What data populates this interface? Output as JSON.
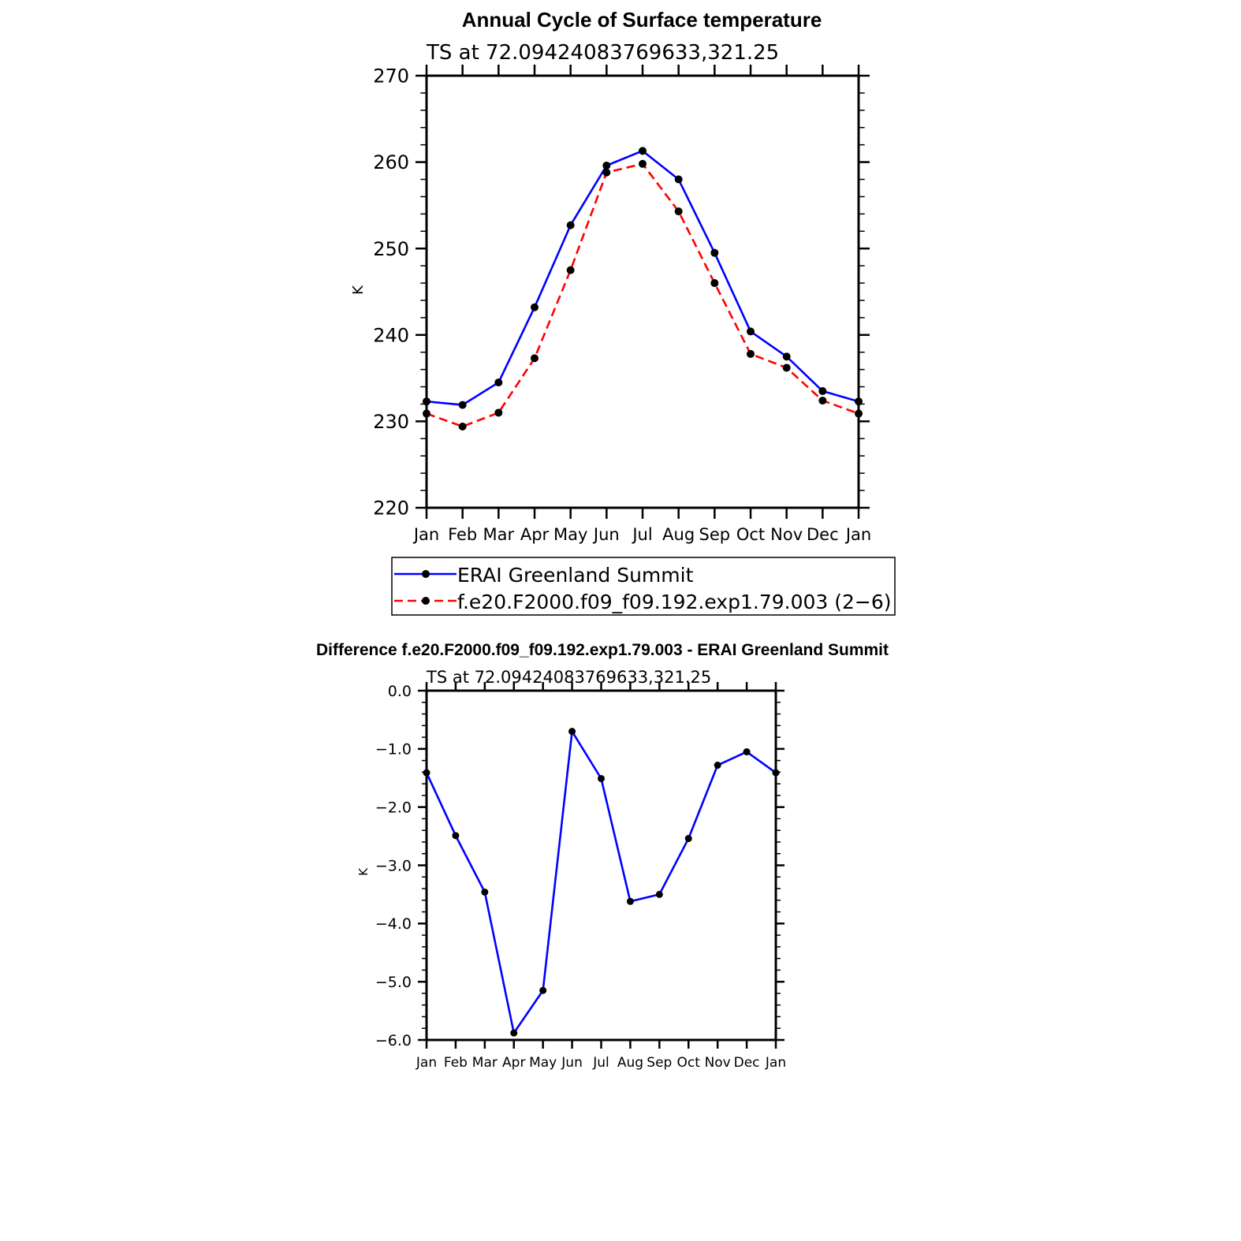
{
  "chart_data": [
    {
      "type": "line",
      "title": "Annual Cycle of Surface temperature",
      "subtitle": "TS at 72.09424083769633,321.25",
      "xlabel": "",
      "ylabel": "K",
      "categories": [
        "Jan",
        "Feb",
        "Mar",
        "Apr",
        "May",
        "Jun",
        "Jul",
        "Aug",
        "Sep",
        "Oct",
        "Nov",
        "Dec",
        "Jan"
      ],
      "ylim": [
        220,
        270
      ],
      "yticks": [
        "220",
        "230",
        "240",
        "250",
        "260",
        "270"
      ],
      "series": [
        {
          "name": "ERAI Greenland Summit",
          "color": "#0000ff",
          "dash": "solid",
          "values": [
            232.3,
            231.9,
            234.5,
            243.2,
            252.7,
            259.6,
            261.3,
            258.0,
            249.5,
            240.4,
            237.5,
            233.5,
            232.3
          ]
        },
        {
          "name": "f.e20.F2000.f09_f09.192.exp1.79.003 (2−6)",
          "color": "#ff0000",
          "dash": "dashed",
          "values": [
            230.9,
            229.4,
            231.0,
            237.3,
            247.5,
            258.8,
            259.8,
            254.3,
            246.0,
            237.8,
            236.2,
            232.4,
            230.9
          ]
        }
      ],
      "legend": "bottom"
    },
    {
      "type": "line",
      "title": "Difference f.e20.F2000.f09_f09.192.exp1.79.003 - ERAI Greenland Summit",
      "subtitle": "TS at 72.09424083769633,321.25",
      "xlabel": "",
      "ylabel": "K",
      "categories": [
        "Jan",
        "Feb",
        "Mar",
        "Apr",
        "May",
        "Jun",
        "Jul",
        "Aug",
        "Sep",
        "Oct",
        "Nov",
        "Dec",
        "Jan"
      ],
      "ylim": [
        -6,
        0
      ],
      "yticks": [
        "-6.0",
        "-5.0",
        "-4.0",
        "-3.0",
        "-2.0",
        "-1.0",
        "0.0"
      ],
      "series": [
        {
          "name": "Difference",
          "color": "#0000ff",
          "dash": "solid",
          "values": [
            -1.41,
            -2.49,
            -3.46,
            -5.88,
            -5.15,
            -0.7,
            -1.51,
            -3.62,
            -3.5,
            -2.54,
            -1.28,
            -1.05,
            -1.41
          ]
        }
      ]
    }
  ]
}
